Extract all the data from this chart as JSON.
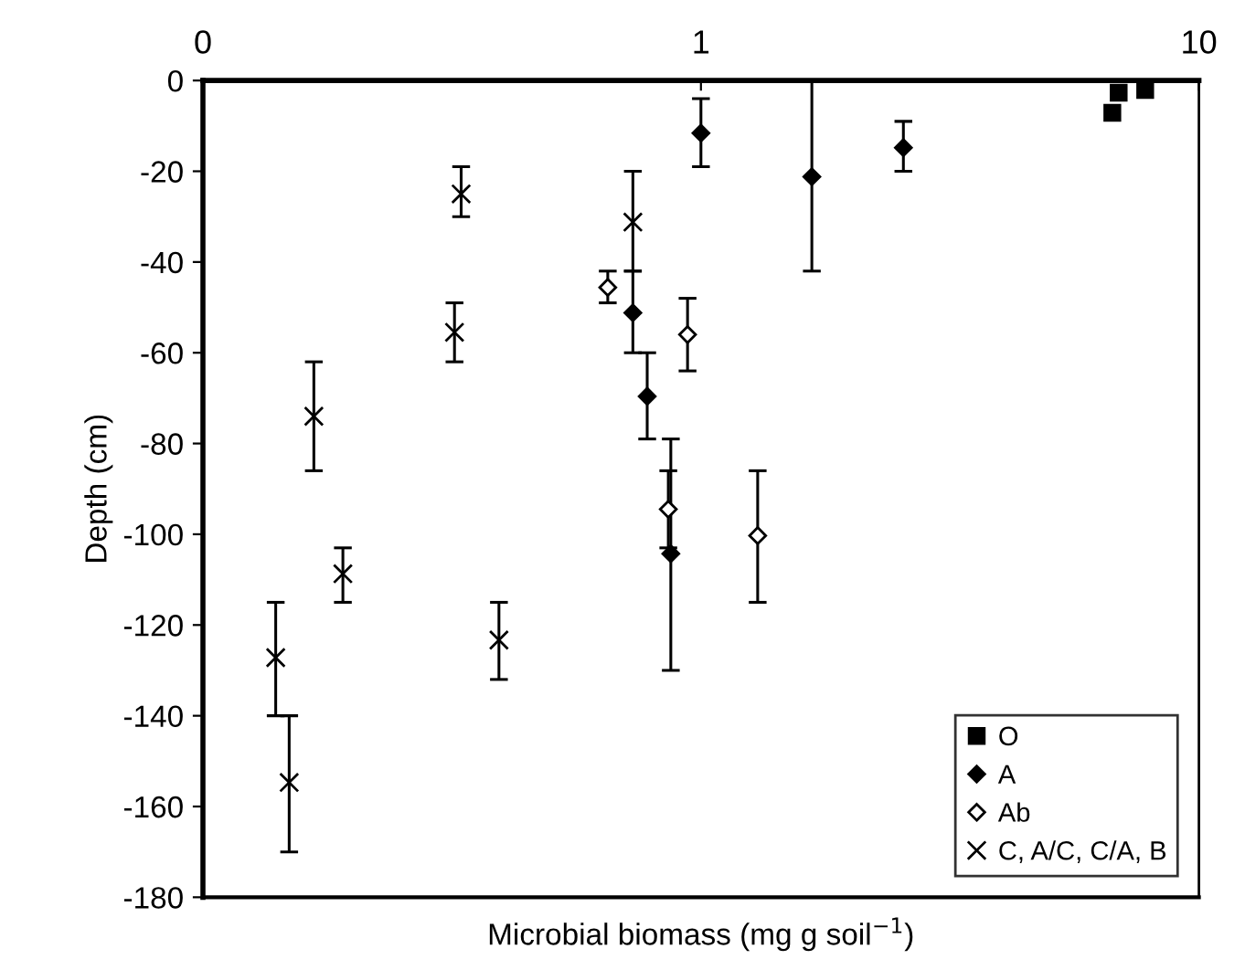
{
  "chart_data": {
    "type": "scatter",
    "xlabel": "Microbial biomass (mg g soil$^{−1}$)",
    "ylabel": "Depth (cm)",
    "log": "x",
    "xlim": [
      0.1,
      10
    ],
    "xticks": [
      {
        "value": 0.1,
        "label": "0"
      },
      1,
      10
    ],
    "ylim": [
      -180,
      0
    ],
    "yticks": [
      -180,
      -160,
      -140,
      -120,
      -100,
      -80,
      -60,
      -40,
      -20,
      0
    ],
    "grid": false,
    "legend": "bottom right",
    "series": [
      {
        "name": "O",
        "color": "#000000",
        "marker": "square",
        "x": [
          6.9,
          6.7,
          7.8
        ],
        "values": [
          -2.7,
          -7.1,
          -2.1
        ]
      },
      {
        "name": "A",
        "color": "#000000",
        "marker": "diamond",
        "x": [
          1.0,
          1.67,
          2.55,
          0.73,
          0.78,
          0.87
        ],
        "values": [
          -11.6,
          -21.2,
          -14.8,
          -51.2,
          -69.6,
          -104.3
        ],
        "errors": [
          [
            -19,
            -4
          ],
          [
            -42,
            0
          ],
          [
            -20,
            -9
          ],
          [
            -60,
            -42
          ],
          [
            -79,
            -60
          ],
          [
            -130,
            -79
          ]
        ]
      },
      {
        "name": "Ab",
        "color": "#ffffff",
        "marker": "diamond",
        "x": [
          0.65,
          0.94,
          0.86,
          1.3
        ],
        "values": [
          -45.6,
          -56,
          -94.5,
          -100.3
        ],
        "errors": [
          [
            -49,
            -42
          ],
          [
            -64,
            -48
          ],
          [
            -103,
            -86
          ],
          [
            -115,
            -86
          ]
        ]
      },
      {
        "name": "C, A/C, C/A, B",
        "color": "#000000",
        "marker": "cross",
        "x": [
          0.33,
          0.32,
          0.167,
          0.73,
          0.14,
          0.149,
          0.191,
          0.393
        ],
        "values": [
          -25,
          -55.5,
          -74,
          -31.2,
          -127.2,
          -154.7,
          -108.7,
          -123.3
        ],
        "errors": [
          [
            -30,
            -19
          ],
          [
            -62,
            -49
          ],
          [
            -86,
            -62
          ],
          [
            -42,
            -20
          ],
          [
            -140,
            -115
          ],
          [
            -170,
            -140
          ],
          [
            -115,
            -103
          ],
          [
            -132,
            -115
          ]
        ]
      }
    ]
  }
}
